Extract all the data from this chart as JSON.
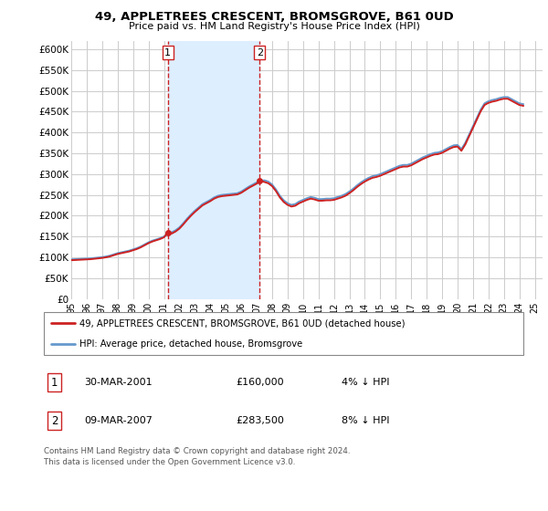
{
  "title": "49, APPLETREES CRESCENT, BROMSGROVE, B61 0UD",
  "subtitle": "Price paid vs. HM Land Registry's House Price Index (HPI)",
  "ylim": [
    0,
    620000
  ],
  "yticks": [
    0,
    50000,
    100000,
    150000,
    200000,
    250000,
    300000,
    350000,
    400000,
    450000,
    500000,
    550000,
    600000
  ],
  "ytick_labels": [
    "£0",
    "£50K",
    "£100K",
    "£150K",
    "£200K",
    "£250K",
    "£300K",
    "£350K",
    "£400K",
    "£450K",
    "£500K",
    "£550K",
    "£600K"
  ],
  "background_color": "#ffffff",
  "grid_color": "#cccccc",
  "hpi_color": "#6699cc",
  "price_color": "#cc2222",
  "marker_vline_color": "#cc2222",
  "shade_color": "#ddeeff",
  "legend_label_price": "49, APPLETREES CRESCENT, BROMSGROVE, B61 0UD (detached house)",
  "legend_label_hpi": "HPI: Average price, detached house, Bromsgrove",
  "transaction1_date": "30-MAR-2001",
  "transaction1_price": 160000,
  "transaction1_pct": "4% ↓ HPI",
  "transaction1_year": 2001.25,
  "transaction2_date": "09-MAR-2007",
  "transaction2_price": 283500,
  "transaction2_pct": "8% ↓ HPI",
  "transaction2_year": 2007.2,
  "footer": "Contains HM Land Registry data © Crown copyright and database right 2024.\nThis data is licensed under the Open Government Licence v3.0.",
  "hpi_data": {
    "years": [
      1995,
      1995.25,
      1995.5,
      1995.75,
      1996,
      1996.25,
      1996.5,
      1996.75,
      1997,
      1997.25,
      1997.5,
      1997.75,
      1998,
      1998.25,
      1998.5,
      1998.75,
      1999,
      1999.25,
      1999.5,
      1999.75,
      2000,
      2000.25,
      2000.5,
      2000.75,
      2001,
      2001.25,
      2001.5,
      2001.75,
      2002,
      2002.25,
      2002.5,
      2002.75,
      2003,
      2003.25,
      2003.5,
      2003.75,
      2004,
      2004.25,
      2004.5,
      2004.75,
      2005,
      2005.25,
      2005.5,
      2005.75,
      2006,
      2006.25,
      2006.5,
      2006.75,
      2007,
      2007.25,
      2007.5,
      2007.75,
      2008,
      2008.25,
      2008.5,
      2008.75,
      2009,
      2009.25,
      2009.5,
      2009.75,
      2010,
      2010.25,
      2010.5,
      2010.75,
      2011,
      2011.25,
      2011.5,
      2011.75,
      2012,
      2012.25,
      2012.5,
      2012.75,
      2013,
      2013.25,
      2013.5,
      2013.75,
      2014,
      2014.25,
      2014.5,
      2014.75,
      2015,
      2015.25,
      2015.5,
      2015.75,
      2016,
      2016.25,
      2016.5,
      2016.75,
      2017,
      2017.25,
      2017.5,
      2017.75,
      2018,
      2018.25,
      2018.5,
      2018.75,
      2019,
      2019.25,
      2019.5,
      2019.75,
      2020,
      2020.25,
      2020.5,
      2020.75,
      2021,
      2021.25,
      2021.5,
      2021.75,
      2022,
      2022.25,
      2022.5,
      2022.75,
      2023,
      2023.25,
      2023.5,
      2023.75,
      2024,
      2024.25
    ],
    "values": [
      95000,
      95500,
      96000,
      96500,
      97000,
      97500,
      98500,
      99500,
      100500,
      102000,
      104000,
      107000,
      110000,
      112000,
      114000,
      116000,
      119000,
      122000,
      126000,
      131000,
      136000,
      140000,
      143000,
      146000,
      150000,
      155000,
      160000,
      165000,
      172000,
      182000,
      193000,
      203000,
      212000,
      220000,
      228000,
      233000,
      238000,
      244000,
      248000,
      250000,
      251000,
      252000,
      253000,
      254000,
      258000,
      264000,
      270000,
      275000,
      280000,
      284000,
      285000,
      282000,
      275000,
      263000,
      248000,
      237000,
      230000,
      226000,
      228000,
      234000,
      238000,
      242000,
      245000,
      243000,
      240000,
      240000,
      241000,
      241000,
      242000,
      245000,
      248000,
      252000,
      258000,
      265000,
      273000,
      280000,
      286000,
      291000,
      295000,
      297000,
      300000,
      304000,
      308000,
      312000,
      316000,
      320000,
      322000,
      322000,
      325000,
      330000,
      335000,
      340000,
      344000,
      348000,
      351000,
      352000,
      355000,
      360000,
      365000,
      369000,
      370000,
      360000,
      375000,
      395000,
      415000,
      435000,
      455000,
      470000,
      475000,
      478000,
      480000,
      483000,
      485000,
      485000,
      480000,
      475000,
      470000,
      468000
    ]
  },
  "price_data": {
    "years": [
      1995,
      1995.25,
      1995.5,
      1995.75,
      1996,
      1996.25,
      1996.5,
      1996.75,
      1997,
      1997.25,
      1997.5,
      1997.75,
      1998,
      1998.25,
      1998.5,
      1998.75,
      1999,
      1999.25,
      1999.5,
      1999.75,
      2000,
      2000.25,
      2000.5,
      2000.75,
      2001,
      2001.25,
      2001.5,
      2001.75,
      2002,
      2002.25,
      2002.5,
      2002.75,
      2003,
      2003.25,
      2003.5,
      2003.75,
      2004,
      2004.25,
      2004.5,
      2004.75,
      2005,
      2005.25,
      2005.5,
      2005.75,
      2006,
      2006.25,
      2006.5,
      2006.75,
      2007,
      2007.25,
      2007.5,
      2007.75,
      2008,
      2008.25,
      2008.5,
      2008.75,
      2009,
      2009.25,
      2009.5,
      2009.75,
      2010,
      2010.25,
      2010.5,
      2010.75,
      2011,
      2011.25,
      2011.5,
      2011.75,
      2012,
      2012.25,
      2012.5,
      2012.75,
      2013,
      2013.25,
      2013.5,
      2013.75,
      2014,
      2014.25,
      2014.5,
      2014.75,
      2015,
      2015.25,
      2015.5,
      2015.75,
      2016,
      2016.25,
      2016.5,
      2016.75,
      2017,
      2017.25,
      2017.5,
      2017.75,
      2018,
      2018.25,
      2018.5,
      2018.75,
      2019,
      2019.25,
      2019.5,
      2019.75,
      2020,
      2020.25,
      2020.5,
      2020.75,
      2021,
      2021.25,
      2021.5,
      2021.75,
      2022,
      2022.25,
      2022.5,
      2022.75,
      2023,
      2023.25,
      2023.5,
      2023.75,
      2024,
      2024.25
    ],
    "values": [
      93000,
      93500,
      94000,
      94500,
      95000,
      95500,
      96500,
      97500,
      98500,
      100000,
      102000,
      105000,
      108000,
      110000,
      112000,
      114000,
      117000,
      120000,
      124000,
      129000,
      134000,
      138000,
      141000,
      144000,
      148000,
      160000,
      157000,
      162000,
      169000,
      179000,
      190000,
      200000,
      209000,
      217000,
      225000,
      230000,
      235000,
      241000,
      245000,
      247000,
      248000,
      249000,
      250000,
      251000,
      255000,
      261000,
      267000,
      272000,
      277000,
      283500,
      281000,
      278000,
      271000,
      259000,
      244000,
      233000,
      226000,
      222000,
      224000,
      230000,
      234000,
      238000,
      241000,
      239000,
      236000,
      236000,
      237000,
      237000,
      238000,
      241000,
      244000,
      248000,
      254000,
      261000,
      269000,
      276000,
      282000,
      287000,
      291000,
      293000,
      296000,
      300000,
      304000,
      308000,
      312000,
      316000,
      318000,
      318000,
      321000,
      326000,
      331000,
      336000,
      340000,
      344000,
      347000,
      348000,
      351000,
      356000,
      361000,
      365000,
      366000,
      356000,
      371000,
      391000,
      411000,
      431000,
      451000,
      466000,
      471000,
      474000,
      476000,
      479000,
      481000,
      481000,
      476000,
      471000,
      466000,
      464000
    ]
  }
}
